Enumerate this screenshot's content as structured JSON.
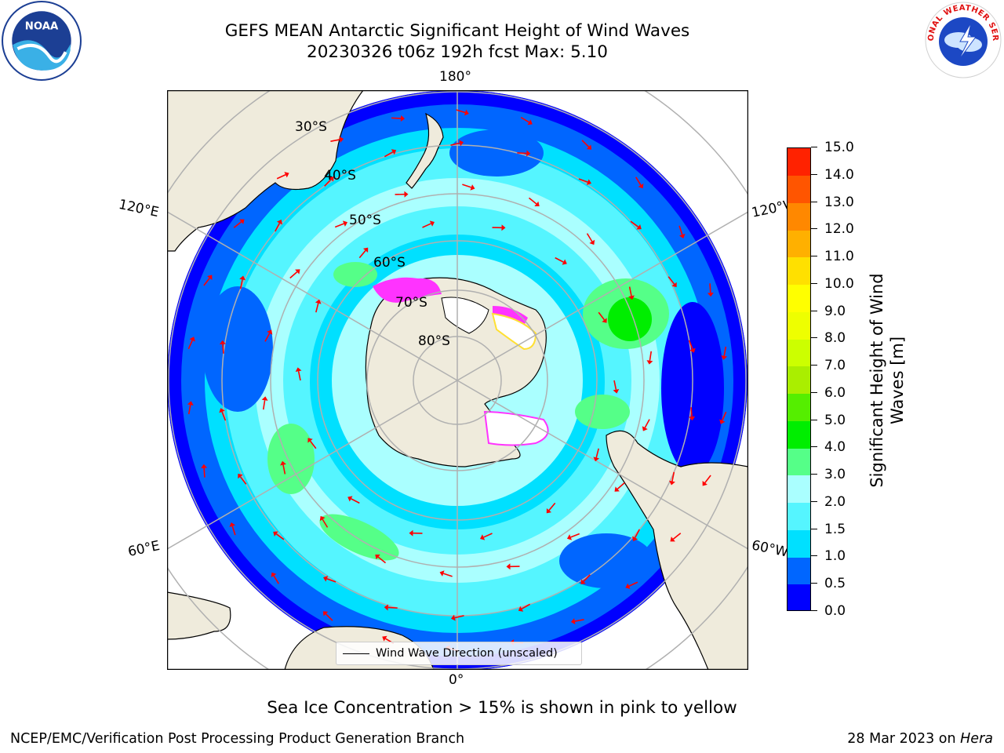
{
  "title": {
    "line1": "GEFS MEAN Antarctic Significant Height of Wind Waves",
    "line2": "20230326 t06z 192h fcst   Max: 5.10"
  },
  "logos": {
    "left": "noaa-logo",
    "left_text": "NOAA",
    "right": "national-weather-service-logo",
    "right_text": "NATIONAL WEATHER SERVICE"
  },
  "map": {
    "projection": "south-polar-stereographic",
    "longitude_labels": {
      "top": "180°",
      "bottom": "0°",
      "upper_left": "120°E",
      "lower_left": "60°E",
      "upper_right": "120°W",
      "lower_right": "60°W"
    },
    "latitude_labels": [
      "30°S",
      "40°S",
      "50°S",
      "60°S",
      "70°S",
      "80°S"
    ],
    "legend": "Wind Wave Direction (unscaled)",
    "land_color": "#efebdc",
    "ice_colors": [
      "#ff33ff",
      "#ffe033"
    ],
    "arrow_color": "#ff0000"
  },
  "colorbar": {
    "title_line1": "Significant Height of Wind",
    "title_line2": "Waves [m]",
    "ticks": [
      "0.0",
      "0.5",
      "1.0",
      "1.5",
      "2.0",
      "3.0",
      "4.0",
      "5.0",
      "6.0",
      "7.0",
      "8.0",
      "9.0",
      "10.0",
      "11.0",
      "12.0",
      "13.0",
      "14.0",
      "15.0"
    ],
    "colors": [
      "#0000ff",
      "#0066ff",
      "#00e0ff",
      "#55f5ff",
      "#aaffff",
      "#55ff88",
      "#00ee00",
      "#55ee00",
      "#aaee00",
      "#ccff00",
      "#eeff00",
      "#ffff00",
      "#ffe000",
      "#ffb000",
      "#ff8800",
      "#ff5500",
      "#ff2200"
    ]
  },
  "subtitle": "Sea Ice Concentration > 15% is shown in pink to yellow",
  "footer": {
    "left": "NCEP/EMC/Verification Post Processing Product Generation Branch",
    "right_prefix": "28 Mar 2023 on ",
    "right_machine": "Hera"
  }
}
